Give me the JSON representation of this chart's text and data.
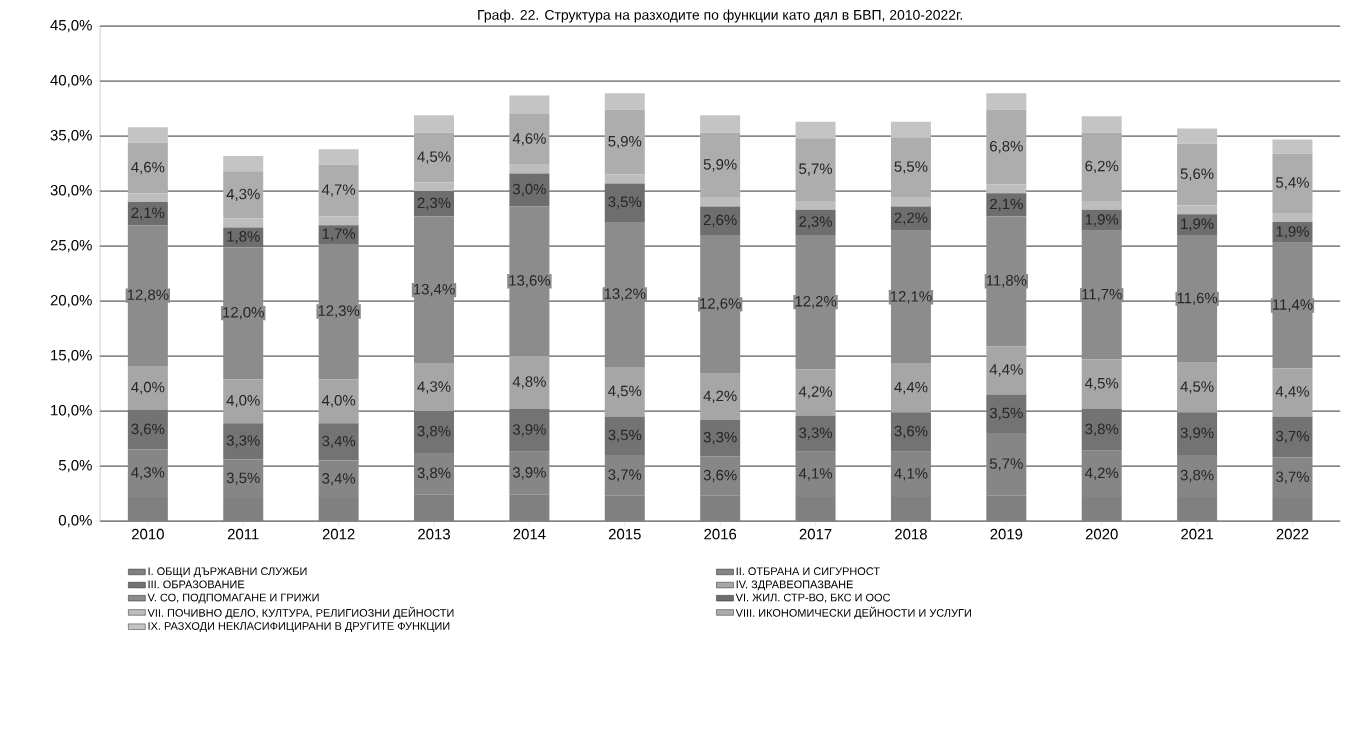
{
  "chart_data": {
    "type": "bar",
    "stacked": true,
    "title": "Граф. 22. Структура на разходите по функции като дял в БВП, 2010-2022г.",
    "categories": [
      "2010",
      "2011",
      "2012",
      "2013",
      "2014",
      "2015",
      "2016",
      "2017",
      "2018",
      "2019",
      "2020",
      "2021",
      "2022"
    ],
    "series": [
      {
        "name": "I. ОБЩИ ДЪРЖАВНИ СЛУЖБИ",
        "color": "#808080",
        "values": [
          2.2,
          2.1,
          2.1,
          2.4,
          2.4,
          2.3,
          2.3,
          2.2,
          2.2,
          2.3,
          2.2,
          2.2,
          2.1
        ]
      },
      {
        "name": "II. ОТБРАНА И СИГУРНОСТ",
        "color": "#868686",
        "values": [
          4.3,
          3.5,
          3.4,
          3.8,
          3.9,
          3.7,
          3.6,
          4.1,
          4.1,
          5.7,
          4.2,
          3.8,
          3.7
        ],
        "value_labels": [
          "4,3%",
          "3,5%",
          "3,4%",
          "3,8%",
          "3,9%",
          "3,7%",
          "3,6%",
          "4,1%",
          "4,1%",
          "5,7%",
          "4,2%",
          "3,8%",
          "3,7%"
        ]
      },
      {
        "name": "III. ОБРАЗОВАНИЕ",
        "color": "#737373",
        "values": [
          3.6,
          3.3,
          3.4,
          3.8,
          3.9,
          3.5,
          3.3,
          3.3,
          3.6,
          3.5,
          3.8,
          3.9,
          3.7
        ],
        "value_labels": [
          "3,6%",
          "3,3%",
          "3,4%",
          "3,8%",
          "3,9%",
          "3,5%",
          "3,3%",
          "3,3%",
          "3,6%",
          "3,5%",
          "3,8%",
          "3,9%",
          "3,7%"
        ]
      },
      {
        "name": "IV. ЗДРАВЕОПАЗВАНЕ",
        "color": "#a6a6a6",
        "values": [
          4.0,
          4.0,
          4.0,
          4.3,
          4.8,
          4.5,
          4.2,
          4.2,
          4.4,
          4.4,
          4.5,
          4.5,
          4.4
        ],
        "value_labels": [
          "4,0%",
          "4,0%",
          "4,0%",
          "4,3%",
          "4,8%",
          "4,5%",
          "4,2%",
          "4,2%",
          "4,4%",
          "4,4%",
          "4,5%",
          "4,5%",
          "4,4%"
        ]
      },
      {
        "name": "V. СО, ПОДПОМАГАНЕ И ГРИЖИ",
        "color": "#8c8c8c",
        "values": [
          12.8,
          12.0,
          12.3,
          13.4,
          13.6,
          13.2,
          12.6,
          12.2,
          12.1,
          11.8,
          11.7,
          11.6,
          11.4
        ],
        "value_labels": [
          "12,8%",
          "12,0%",
          "12,3%",
          "13,4%",
          "13,6%",
          "13,2%",
          "12,6%",
          "12,2%",
          "12,1%",
          "11,8%",
          "11,7%",
          "11,6%",
          "11,4%"
        ]
      },
      {
        "name": "VI. ЖИЛ. СТР-ВО, БКС И ООС",
        "color": "#6e6e6e",
        "values": [
          2.1,
          1.8,
          1.7,
          2.3,
          3.0,
          3.5,
          2.6,
          2.3,
          2.2,
          2.1,
          1.9,
          1.9,
          1.9
        ],
        "value_labels": [
          "2,1%",
          "1,8%",
          "1,7%",
          "2,3%",
          "3,0%",
          "3,5%",
          "2,6%",
          "2,3%",
          "2,2%",
          "2,1%",
          "1,9%",
          "1,9%",
          "1,9%"
        ]
      },
      {
        "name": "VII. ПОЧИВНО ДЕЛО, КУЛТУРА, РЕЛИГИОЗНИ ДЕЙНОСТИ",
        "color": "#bdbdbd",
        "values": [
          0.8,
          0.8,
          0.8,
          0.8,
          0.8,
          0.8,
          0.8,
          0.8,
          0.8,
          0.8,
          0.8,
          0.8,
          0.8
        ]
      },
      {
        "name": "VIII. ИКОНОМИЧЕСКИ ДЕЙНОСТИ И УСЛУГИ",
        "color": "#adadad",
        "values": [
          4.6,
          4.3,
          4.7,
          4.5,
          4.6,
          5.9,
          5.9,
          5.7,
          5.5,
          6.8,
          6.2,
          5.6,
          5.4
        ],
        "value_labels": [
          "4,6%",
          "4,3%",
          "4,7%",
          "4,5%",
          "4,6%",
          "5,9%",
          "5,9%",
          "5,7%",
          "5,5%",
          "6,8%",
          "6,2%",
          "5,6%",
          "5,4%"
        ]
      },
      {
        "name": "IX. РАЗХОДИ НЕКЛАСИФИЦИРАНИ В ДРУГИТЕ ФУНКЦИИ",
        "color": "#c4c4c4",
        "values": [
          1.4,
          1.4,
          1.4,
          1.6,
          1.7,
          1.5,
          1.6,
          1.5,
          1.4,
          1.5,
          1.5,
          1.4,
          1.3
        ]
      }
    ],
    "ylim": [
      0,
      45
    ],
    "yticks": [
      {
        "value": 0,
        "label": "0,0%"
      },
      {
        "value": 5,
        "label": "5,0%"
      },
      {
        "value": 10,
        "label": "10,0%"
      },
      {
        "value": 15,
        "label": "15,0%"
      },
      {
        "value": 20,
        "label": "20,0%"
      },
      {
        "value": 25,
        "label": "25,0%"
      },
      {
        "value": 30,
        "label": "30,0%"
      },
      {
        "value": 35,
        "label": "35,0%"
      },
      {
        "value": 40,
        "label": "40,0%"
      },
      {
        "value": 45,
        "label": "45,0%"
      }
    ],
    "grid": "y",
    "legend": "bottom"
  }
}
